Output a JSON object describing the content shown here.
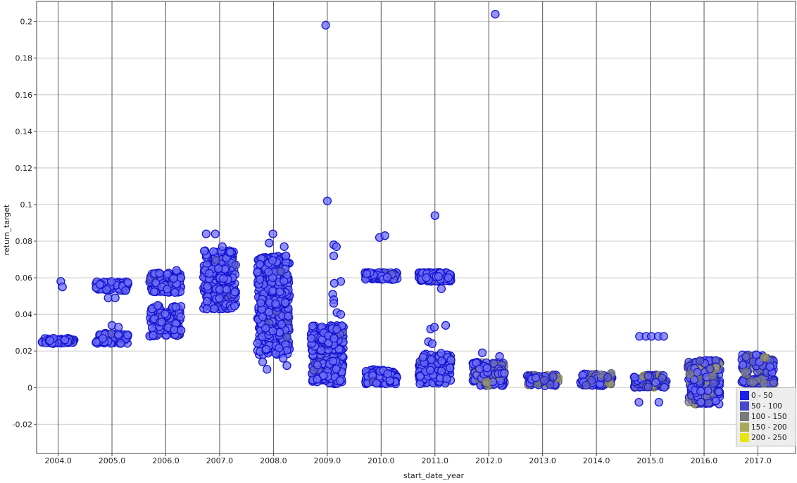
{
  "chart_data": {
    "type": "scatter",
    "title": "",
    "xlabel": "start_date_year",
    "ylabel": "return_target",
    "xlim": [
      2003.6,
      2017.7
    ],
    "ylim": [
      -0.036,
      0.211
    ],
    "x_ticks": [
      "2004.0",
      "2005.0",
      "2006.0",
      "2007.0",
      "2008.0",
      "2009.0",
      "2010.0",
      "2011.0",
      "2012.0",
      "2013.0",
      "2014.0",
      "2015.0",
      "2016.0",
      "2017.0"
    ],
    "y_ticks": [
      "-0.02",
      "0",
      "0.02",
      "0.04",
      "0.06",
      "0.08",
      "0.1",
      "0.12",
      "0.14",
      "0.16",
      "0.18",
      "0.2"
    ],
    "grid": true,
    "jitter": 0.3,
    "legend": {
      "position": "bottom-right",
      "entries": [
        {
          "label": "0 - 50",
          "color": "#1f1fe6"
        },
        {
          "label": "50 - 100",
          "color": "#4848cc"
        },
        {
          "label": "100 - 150",
          "color": "#7a7a7a"
        },
        {
          "label": "150 - 200",
          "color": "#a8a858"
        },
        {
          "label": "200 - 250",
          "color": "#e6e614"
        }
      ]
    },
    "clusters": [
      {
        "year": 2004,
        "y_ranges": [
          [
            0.024,
            0.027
          ]
        ],
        "count": 60
      },
      {
        "year": 2005,
        "y_ranges": [
          [
            0.024,
            0.03
          ],
          [
            0.053,
            0.058
          ]
        ],
        "count": 140
      },
      {
        "year": 2006,
        "y_ranges": [
          [
            0.028,
            0.045
          ],
          [
            0.052,
            0.063
          ]
        ],
        "count": 240
      },
      {
        "year": 2007,
        "y_ranges": [
          [
            0.043,
            0.058
          ],
          [
            0.058,
            0.075
          ]
        ],
        "count": 260
      },
      {
        "year": 2008,
        "y_ranges": [
          [
            0.018,
            0.045
          ],
          [
            0.045,
            0.072
          ]
        ],
        "count": 420
      },
      {
        "year": 2009,
        "y_ranges": [
          [
            0.002,
            0.02
          ],
          [
            0.02,
            0.034
          ]
        ],
        "count": 320
      },
      {
        "year": 2010,
        "y_ranges": [
          [
            0.002,
            0.01
          ],
          [
            0.059,
            0.063
          ]
        ],
        "count": 200
      },
      {
        "year": 2011,
        "y_ranges": [
          [
            0.002,
            0.019
          ],
          [
            0.058,
            0.063
          ]
        ],
        "count": 300
      },
      {
        "year": 2012,
        "y_ranges": [
          [
            0.001,
            0.014
          ]
        ],
        "count": 140
      },
      {
        "year": 2013,
        "y_ranges": [
          [
            0.001,
            0.007
          ]
        ],
        "count": 80
      },
      {
        "year": 2014,
        "y_ranges": [
          [
            0.001,
            0.008
          ]
        ],
        "count": 80
      },
      {
        "year": 2015,
        "y_ranges": [
          [
            0.0,
            0.007
          ]
        ],
        "count": 100
      },
      {
        "year": 2016,
        "y_ranges": [
          [
            -0.009,
            0.015
          ]
        ],
        "count": 240
      },
      {
        "year": 2017,
        "y_ranges": [
          [
            0.002,
            0.005
          ],
          [
            0.008,
            0.018
          ]
        ],
        "count": 160
      }
    ],
    "outliers": [
      {
        "x": 2004.05,
        "y": 0.058
      },
      {
        "x": 2004.08,
        "y": 0.055
      },
      {
        "x": 2005.0,
        "y": 0.034
      },
      {
        "x": 2005.12,
        "y": 0.033
      },
      {
        "x": 2004.93,
        "y": 0.049
      },
      {
        "x": 2005.06,
        "y": 0.049
      },
      {
        "x": 2006.2,
        "y": 0.064
      },
      {
        "x": 2006.17,
        "y": 0.052
      },
      {
        "x": 2006.75,
        "y": 0.084
      },
      {
        "x": 2006.92,
        "y": 0.084
      },
      {
        "x": 2007.05,
        "y": 0.077
      },
      {
        "x": 2007.2,
        "y": 0.074
      },
      {
        "x": 2007.99,
        "y": 0.084
      },
      {
        "x": 2007.92,
        "y": 0.079
      },
      {
        "x": 2008.2,
        "y": 0.077
      },
      {
        "x": 2008.23,
        "y": 0.072
      },
      {
        "x": 2007.8,
        "y": 0.014
      },
      {
        "x": 2007.88,
        "y": 0.01
      },
      {
        "x": 2008.25,
        "y": 0.012
      },
      {
        "x": 2008.18,
        "y": 0.016
      },
      {
        "x": 2008.97,
        "y": 0.198
      },
      {
        "x": 2009.0,
        "y": 0.102
      },
      {
        "x": 2009.12,
        "y": 0.078
      },
      {
        "x": 2009.17,
        "y": 0.077
      },
      {
        "x": 2009.12,
        "y": 0.072
      },
      {
        "x": 2009.25,
        "y": 0.058
      },
      {
        "x": 2009.13,
        "y": 0.057
      },
      {
        "x": 2009.1,
        "y": 0.051
      },
      {
        "x": 2009.12,
        "y": 0.048
      },
      {
        "x": 2009.12,
        "y": 0.046
      },
      {
        "x": 2009.18,
        "y": 0.041
      },
      {
        "x": 2009.25,
        "y": 0.04
      },
      {
        "x": 2009.97,
        "y": 0.082
      },
      {
        "x": 2010.07,
        "y": 0.083
      },
      {
        "x": 2011.0,
        "y": 0.094
      },
      {
        "x": 2011.12,
        "y": 0.054
      },
      {
        "x": 2010.88,
        "y": 0.025
      },
      {
        "x": 2010.95,
        "y": 0.024
      },
      {
        "x": 2010.92,
        "y": 0.032
      },
      {
        "x": 2010.99,
        "y": 0.033
      },
      {
        "x": 2011.2,
        "y": 0.034
      },
      {
        "x": 2012.12,
        "y": 0.204
      },
      {
        "x": 2011.88,
        "y": 0.019
      },
      {
        "x": 2012.2,
        "y": 0.017
      },
      {
        "x": 2014.8,
        "y": 0.028
      },
      {
        "x": 2014.92,
        "y": 0.028
      },
      {
        "x": 2015.02,
        "y": 0.028
      },
      {
        "x": 2015.15,
        "y": 0.028
      },
      {
        "x": 2015.25,
        "y": 0.028
      },
      {
        "x": 2014.79,
        "y": -0.008
      },
      {
        "x": 2015.16,
        "y": -0.008
      }
    ]
  }
}
